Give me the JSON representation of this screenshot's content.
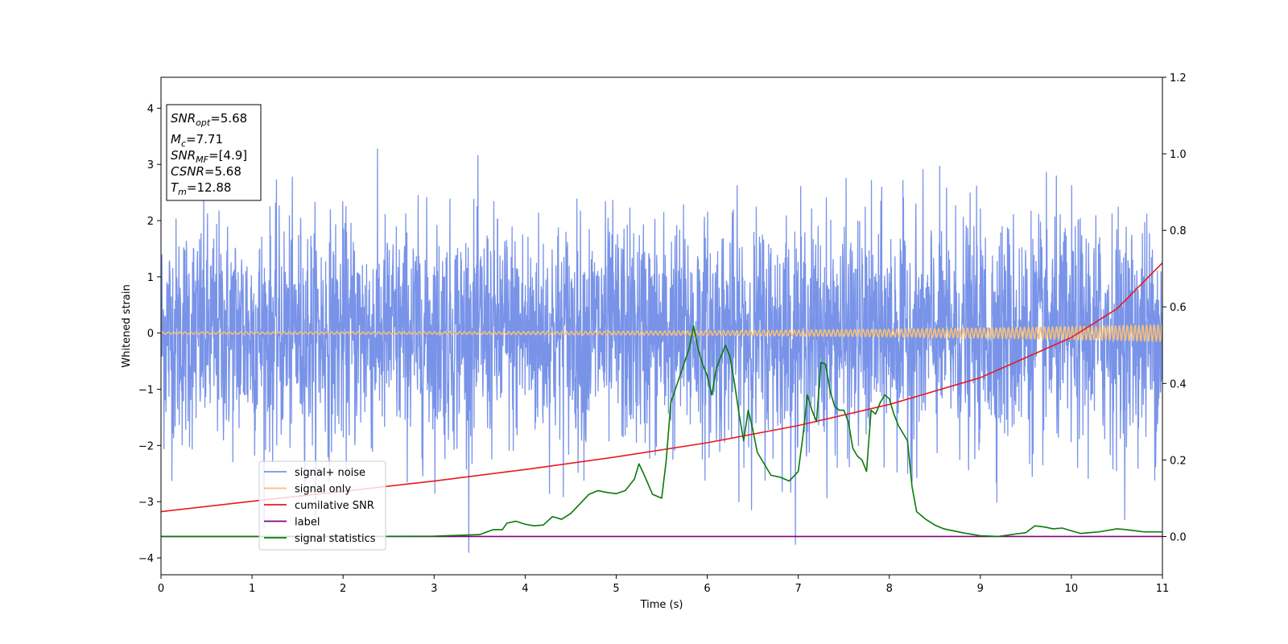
{
  "chart_data": {
    "type": "line",
    "title": "",
    "xlabel": "Time (s)",
    "ylabel": "Whitened strain",
    "xlim": [
      0,
      11
    ],
    "ylim": [
      -4.3,
      4.55
    ],
    "y2lim": [
      -0.1,
      1.2
    ],
    "grid": false,
    "legend_position": "lower-left",
    "x_ticks": [
      "0",
      "1",
      "2",
      "3",
      "4",
      "5",
      "6",
      "7",
      "8",
      "9",
      "10",
      "11"
    ],
    "y_ticks": [
      "−4",
      "−3",
      "−2",
      "−1",
      "0",
      "1",
      "2",
      "3",
      "4"
    ],
    "y2_ticks": [
      "0.0",
      "0.2",
      "0.4",
      "0.6",
      "0.8",
      "1.0",
      "1.2"
    ],
    "annotation": {
      "snr_opt": {
        "sym": "SNR",
        "sub": "opt",
        "value": "=5.68"
      },
      "mc": {
        "sym": "M",
        "sub": "c",
        "value": "=7.71"
      },
      "snr_mf": {
        "sym": "SNR",
        "sub": "MF",
        "value": "=[4.9]"
      },
      "csnr": {
        "sym": "CSNR",
        "value": "=5.68"
      },
      "tm": {
        "sym": "T",
        "sub": "m",
        "value": "=12.88"
      }
    },
    "series": [
      {
        "name": "signal+ noise",
        "color": "#7893e8",
        "axis": "left",
        "style": "noise",
        "description_range": [
          -3.9,
          4.15
        ]
      },
      {
        "name": "signal only",
        "color": "#f5c07a",
        "axis": "left",
        "style": "chirp",
        "amplitude_start": 0.02,
        "amplitude_end": 0.15
      },
      {
        "name": "cumilative SNR",
        "color": "#e8191b",
        "axis": "right",
        "x": [
          0,
          1,
          2,
          3,
          4,
          5,
          6,
          7,
          8,
          9,
          10,
          10.5,
          11
        ],
        "values": [
          0.065,
          0.092,
          0.118,
          0.145,
          0.175,
          0.208,
          0.245,
          0.29,
          0.345,
          0.415,
          0.52,
          0.595,
          0.715
        ]
      },
      {
        "name": "label",
        "color": "#800080",
        "axis": "right",
        "x": [
          0,
          11
        ],
        "values": [
          0.0,
          0.0
        ]
      },
      {
        "name": "signal statistics",
        "color": "#0a7a0a",
        "axis": "right",
        "x": [
          0,
          1,
          2,
          3,
          3.5,
          3.65,
          3.75,
          3.8,
          3.9,
          4.0,
          4.1,
          4.2,
          4.3,
          4.4,
          4.5,
          4.6,
          4.7,
          4.8,
          4.9,
          5.0,
          5.1,
          5.2,
          5.25,
          5.3,
          5.4,
          5.5,
          5.55,
          5.6,
          5.7,
          5.8,
          5.85,
          5.9,
          5.95,
          6.0,
          6.05,
          6.1,
          6.15,
          6.2,
          6.25,
          6.3,
          6.35,
          6.4,
          6.45,
          6.5,
          6.55,
          6.6,
          6.7,
          6.8,
          6.85,
          6.9,
          7.0,
          7.05,
          7.1,
          7.15,
          7.2,
          7.25,
          7.3,
          7.35,
          7.4,
          7.45,
          7.5,
          7.55,
          7.6,
          7.65,
          7.7,
          7.75,
          7.8,
          7.85,
          7.9,
          7.95,
          8.0,
          8.05,
          8.1,
          8.15,
          8.2,
          8.25,
          8.3,
          8.4,
          8.5,
          8.6,
          8.8,
          9.0,
          9.2,
          9.4,
          9.5,
          9.6,
          9.7,
          9.8,
          9.9,
          10.0,
          10.1,
          10.2,
          10.3,
          10.5,
          10.6,
          10.7,
          10.8,
          11.0
        ],
        "values": [
          0.0,
          0.0,
          0.0,
          0.001,
          0.005,
          0.018,
          0.018,
          0.035,
          0.04,
          0.032,
          0.028,
          0.03,
          0.052,
          0.045,
          0.06,
          0.085,
          0.11,
          0.12,
          0.115,
          0.112,
          0.12,
          0.15,
          0.19,
          0.165,
          0.11,
          0.1,
          0.2,
          0.35,
          0.42,
          0.49,
          0.55,
          0.49,
          0.45,
          0.42,
          0.37,
          0.44,
          0.47,
          0.5,
          0.47,
          0.4,
          0.32,
          0.25,
          0.33,
          0.28,
          0.22,
          0.2,
          0.16,
          0.155,
          0.15,
          0.145,
          0.17,
          0.26,
          0.37,
          0.33,
          0.3,
          0.455,
          0.45,
          0.38,
          0.34,
          0.33,
          0.33,
          0.3,
          0.23,
          0.21,
          0.2,
          0.17,
          0.33,
          0.32,
          0.35,
          0.37,
          0.36,
          0.32,
          0.29,
          0.27,
          0.25,
          0.13,
          0.065,
          0.045,
          0.03,
          0.02,
          0.01,
          0.002,
          0.0,
          0.007,
          0.01,
          0.028,
          0.025,
          0.02,
          0.022,
          0.015,
          0.008,
          0.01,
          0.012,
          0.02,
          0.018,
          0.015,
          0.012,
          0.012
        ]
      }
    ]
  }
}
